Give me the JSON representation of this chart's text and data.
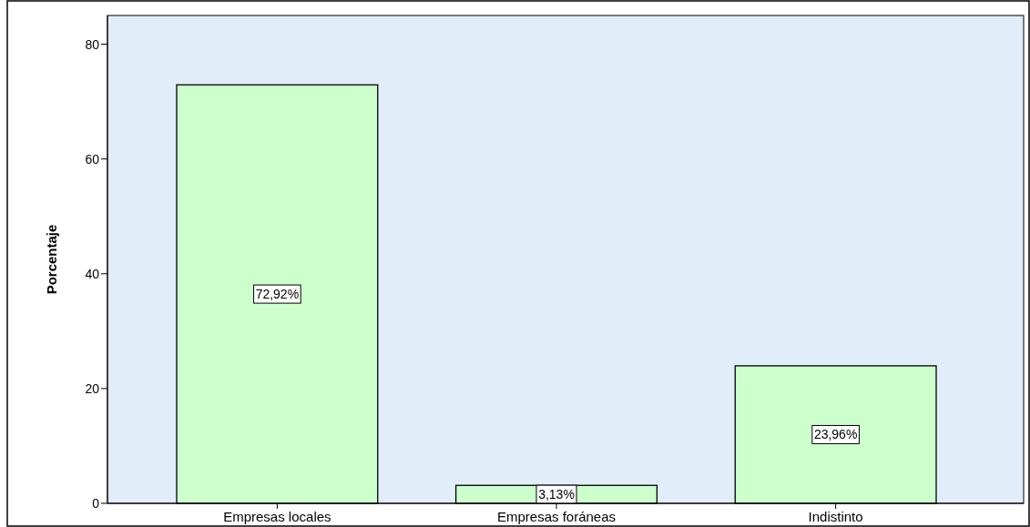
{
  "chart_data": {
    "type": "bar",
    "ylabel": "Porcentaje",
    "categories": [
      "Empresas locales",
      "Empresas foráneas",
      "Indistinto"
    ],
    "values": [
      72.92,
      3.13,
      23.96
    ],
    "value_labels": [
      "72,92%",
      "3,13%",
      "23,96%"
    ],
    "color": "#ccffcc",
    "ylim": [
      0,
      85
    ],
    "yticks": [
      0,
      20,
      40,
      60,
      80
    ]
  }
}
